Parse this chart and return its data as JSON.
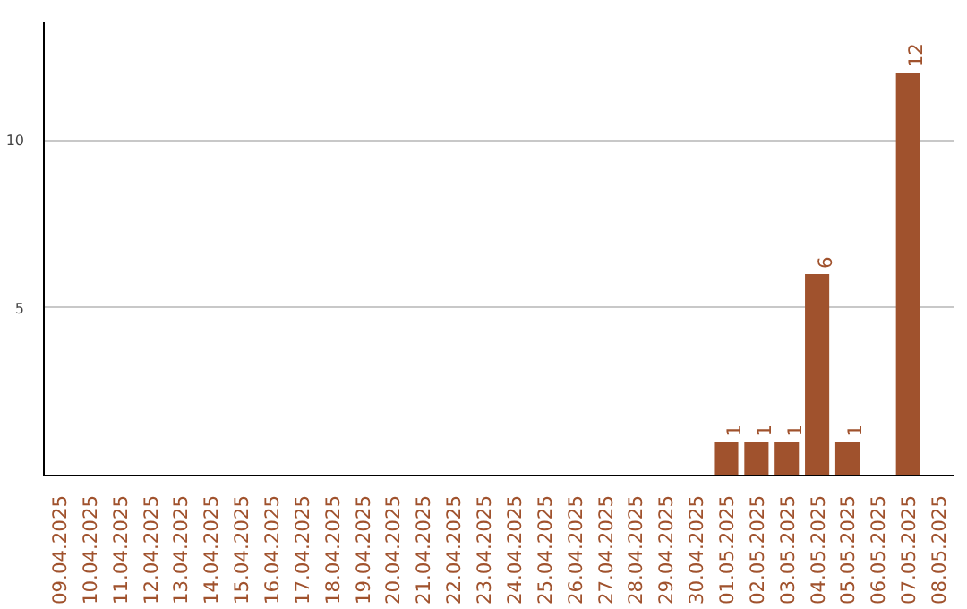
{
  "chart_data": {
    "type": "bar",
    "categories": [
      "09.04.2025",
      "10.04.2025",
      "11.04.2025",
      "12.04.2025",
      "13.04.2025",
      "14.04.2025",
      "15.04.2025",
      "16.04.2025",
      "17.04.2025",
      "18.04.2025",
      "19.04.2025",
      "20.04.2025",
      "21.04.2025",
      "22.04.2025",
      "23.04.2025",
      "24.04.2025",
      "25.04.2025",
      "26.04.2025",
      "27.04.2025",
      "28.04.2025",
      "29.04.2025",
      "30.04.2025",
      "01.05.2025",
      "02.05.2025",
      "03.05.2025",
      "04.05.2025",
      "05.05.2025",
      "06.05.2025",
      "07.05.2025",
      "08.05.2025"
    ],
    "values": [
      0,
      0,
      0,
      0,
      0,
      0,
      0,
      0,
      0,
      0,
      0,
      0,
      0,
      0,
      0,
      0,
      0,
      0,
      0,
      0,
      0,
      0,
      1,
      1,
      1,
      6,
      1,
      0,
      12,
      0
    ],
    "value_labels": [
      null,
      null,
      null,
      null,
      null,
      null,
      null,
      null,
      null,
      null,
      null,
      null,
      null,
      null,
      null,
      null,
      null,
      null,
      null,
      null,
      null,
      null,
      "1",
      "1",
      "1",
      "6",
      "1",
      null,
      "12",
      null
    ],
    "color": "#a0522d",
    "ylim": [
      0,
      13.5
    ],
    "yticks": [
      5,
      10
    ],
    "grid": "y"
  }
}
